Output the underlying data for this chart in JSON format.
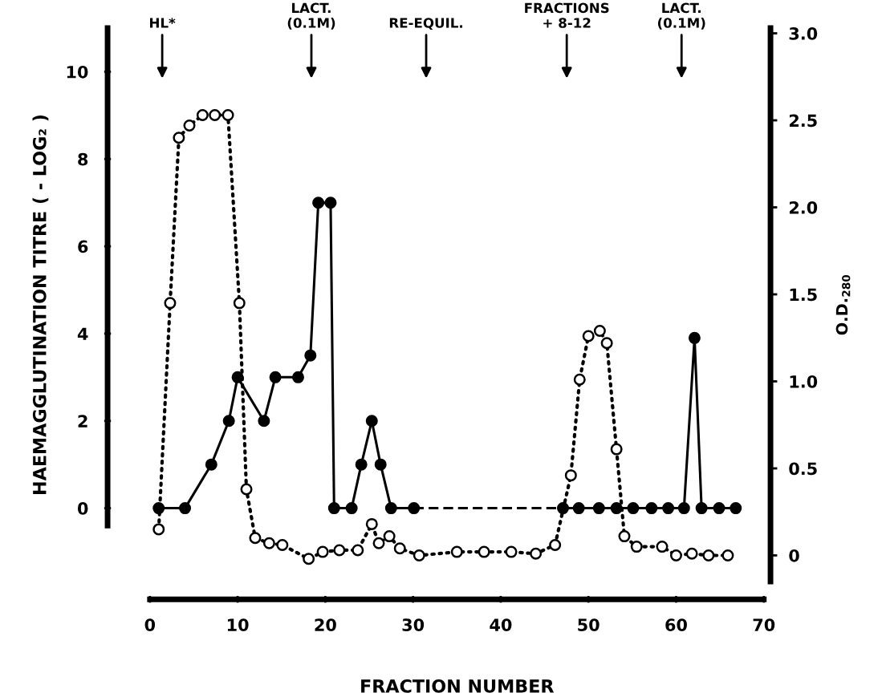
{
  "chart_data": {
    "type": "line",
    "xlabel": "FRACTION NUMBER",
    "ylabel": "HAEMAGGLUTINATION TITRE ( - LOG₂ )",
    "y2label": "O.D.$_{280}$",
    "xlim": [
      0,
      70
    ],
    "xticks": [
      0,
      10,
      20,
      30,
      40,
      50,
      60,
      70
    ],
    "ylim": [
      -1.68,
      11.0
    ],
    "yticks": [
      0,
      2,
      4,
      6,
      8,
      10
    ],
    "y2lim": [
      -0.15,
      3.03
    ],
    "y2ticks": [
      {
        "value": 0,
        "label": "0"
      },
      {
        "value": 0.5,
        "label": "0.5"
      },
      {
        "value": 1.0,
        "label": "1.0"
      },
      {
        "value": 1.5,
        "label": "1.5"
      },
      {
        "value": 2.0,
        "label": "2.0"
      },
      {
        "value": 2.5,
        "label": "2.5"
      },
      {
        "value": 3.0,
        "label": "3.0"
      }
    ],
    "grid": false,
    "legend": false,
    "series": [
      {
        "color": "#000000",
        "marker": "circle",
        "line_style": "solid",
        "x": [
          1,
          4,
          7,
          9,
          10,
          13,
          14.3,
          16.9,
          18.3,
          19.2,
          20.6,
          21,
          23,
          24.1,
          25.3,
          26.3,
          27.5,
          30.1
        ],
        "values": [
          0,
          0,
          1,
          2,
          3,
          2,
          3,
          3,
          3.5,
          7,
          7,
          0,
          0,
          1,
          2,
          1,
          0,
          0
        ]
      },
      {
        "color": "#000000",
        "line_style": "dashed",
        "x": [
          30.1,
          47.1
        ],
        "values": [
          0,
          0
        ]
      },
      {
        "color": "#000000",
        "marker": "circle",
        "line_style": "solid",
        "x": [
          47.1,
          48.9,
          51.2,
          53.2,
          55.1,
          57.2,
          59.1,
          60.9,
          62.1,
          62.9,
          64.9,
          66.8
        ],
        "values": [
          0,
          0,
          0,
          0,
          0,
          0,
          0,
          0,
          3.9,
          0,
          0,
          0
        ]
      },
      {
        "color": "#000000",
        "marker": "circle",
        "line_style": "dotted",
        "axis": "y2",
        "x": [
          1.0,
          2.3,
          3.3,
          4.5,
          6.0,
          7.4,
          8.9,
          10.2,
          11.0,
          12.0,
          13.6,
          15.1,
          18.1,
          19.7,
          21.6,
          23.7,
          25.3,
          26.1,
          27.3,
          28.5,
          30.7,
          35.0,
          38.1,
          41.2,
          44.0,
          46.2,
          48.0,
          49.0,
          50.0,
          51.3,
          52.1,
          53.2,
          54.1,
          55.5,
          58.4,
          60.0,
          61.8,
          63.7,
          65.9
        ],
        "values": [
          0.15,
          1.45,
          2.4,
          2.47,
          2.53,
          2.53,
          2.53,
          1.45,
          0.38,
          0.1,
          0.07,
          0.06,
          -0.02,
          0.02,
          0.03,
          0.03,
          0.18,
          0.07,
          0.11,
          0.04,
          0.0,
          0.02,
          0.02,
          0.02,
          0.01,
          0.06,
          0.46,
          1.01,
          1.26,
          1.29,
          1.22,
          0.61,
          0.11,
          0.05,
          0.05,
          0.0,
          0.01,
          0.0,
          0.0
        ]
      }
    ],
    "annotations": [
      "HL*",
      "LACT.\n(0.1M)",
      "RE-EQUIL.",
      "FRACTIONS\n+ 8-12",
      "LACT.\n(0.1M)"
    ]
  }
}
